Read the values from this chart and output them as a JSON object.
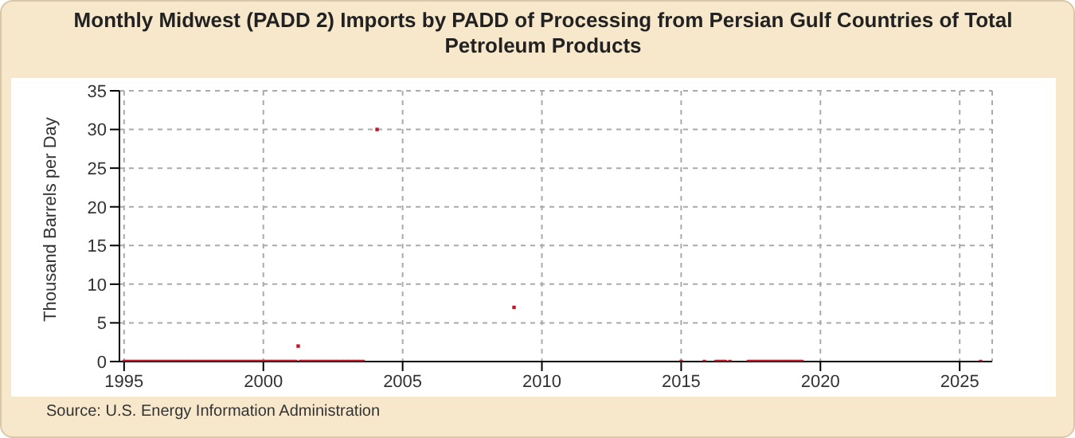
{
  "chart_data": {
    "type": "scatter",
    "title": "Monthly Midwest (PADD 2) Imports by PADD of Processing from Persian Gulf Countries of Total Petroleum Products",
    "ylabel": "Thousand Barrels per Day",
    "annotations": [
      "Source: U.S. Energy Information Administration"
    ],
    "x": [
      "1995-01",
      "1995-02",
      "1995-03",
      "1995-04",
      "1995-05",
      "1995-06",
      "1995-07",
      "1995-08",
      "1995-09",
      "1995-10",
      "1995-11",
      "1995-12",
      "1996-01",
      "1996-02",
      "1996-03",
      "1996-04",
      "1996-05",
      "1996-06",
      "1996-07",
      "1996-08",
      "1996-09",
      "1996-10",
      "1996-11",
      "1996-12",
      "1997-01",
      "1997-02",
      "1997-03",
      "1997-04",
      "1997-05",
      "1997-06",
      "1997-07",
      "1997-08",
      "1997-09",
      "1997-10",
      "1997-11",
      "1997-12",
      "1998-01",
      "1998-02",
      "1998-03",
      "1998-04",
      "1998-05",
      "1998-06",
      "1998-07",
      "1998-08",
      "1998-09",
      "1998-10",
      "1998-11",
      "1998-12",
      "1999-01",
      "1999-02",
      "1999-03",
      "1999-04",
      "1999-05",
      "1999-06",
      "1999-07",
      "1999-08",
      "1999-09",
      "1999-10",
      "1999-11",
      "1999-12",
      "2000-01",
      "2000-02",
      "2000-03",
      "2000-04",
      "2000-05",
      "2000-06",
      "2000-07",
      "2000-08",
      "2000-09",
      "2000-10",
      "2000-11",
      "2000-12",
      "2001-01",
      "2001-02",
      "2001-03",
      "2001-04",
      "2001-05",
      "2001-06",
      "2001-07",
      "2001-08",
      "2001-09",
      "2001-10",
      "2001-11",
      "2001-12",
      "2002-01",
      "2002-02",
      "2002-03",
      "2002-04",
      "2002-05",
      "2002-06",
      "2002-07",
      "2002-08",
      "2002-09",
      "2002-10",
      "2002-11",
      "2002-12",
      "2003-01",
      "2003-02",
      "2003-03",
      "2003-04",
      "2003-05",
      "2003-06",
      "2003-07",
      "2003-08",
      "2004-02",
      "2009-01",
      "2015-01",
      "2015-11",
      "2016-04",
      "2016-05",
      "2016-06",
      "2016-07",
      "2016-08",
      "2016-10",
      "2017-06",
      "2017-07",
      "2017-08",
      "2017-09",
      "2017-10",
      "2017-11",
      "2017-12",
      "2018-01",
      "2018-02",
      "2018-03",
      "2018-04",
      "2018-05",
      "2018-06",
      "2018-07",
      "2018-08",
      "2018-09",
      "2018-10",
      "2018-11",
      "2018-12",
      "2019-01",
      "2019-02",
      "2019-03",
      "2019-04",
      "2019-05",
      "2025-10"
    ],
    "series": [
      {
        "color": "#c0172a",
        "values": [
          0,
          0,
          0,
          0,
          0,
          0,
          0,
          0,
          0,
          0,
          0,
          0,
          0,
          0,
          0,
          0,
          0,
          0,
          0,
          0,
          0,
          0,
          0,
          0,
          0,
          0,
          0,
          0,
          0,
          0,
          0,
          0,
          0,
          0,
          0,
          0,
          0,
          0,
          0,
          0,
          0,
          0,
          0,
          0,
          0,
          0,
          0,
          0,
          0,
          0,
          0,
          0,
          0,
          0,
          0,
          0,
          0,
          0,
          0,
          0,
          0,
          0,
          0,
          0,
          0,
          0,
          0,
          0,
          0,
          0,
          0,
          0,
          0,
          0,
          0,
          2,
          0,
          0,
          0,
          0,
          0,
          0,
          0,
          0,
          0,
          0,
          0,
          0,
          0,
          0,
          0,
          0,
          0,
          0,
          0,
          0,
          0,
          0,
          0,
          0,
          0,
          0,
          0,
          0,
          30,
          7,
          0,
          0,
          0,
          0,
          0,
          0,
          0,
          0,
          0,
          0,
          0,
          0,
          0,
          0,
          0,
          0,
          0,
          0,
          0,
          0,
          0,
          0,
          0,
          0,
          0,
          0,
          0,
          0,
          0,
          0,
          0,
          0,
          0
        ]
      }
    ],
    "xlim": [
      "1994-11",
      "2026-03"
    ],
    "xticks": [
      "1995",
      "2000",
      "2005",
      "2010",
      "2015",
      "2020",
      "2025"
    ],
    "ylim": [
      0,
      35
    ],
    "yticks": [
      0,
      5,
      10,
      15,
      20,
      25,
      30,
      35
    ],
    "grid": true,
    "marker": "square",
    "legend": false
  }
}
